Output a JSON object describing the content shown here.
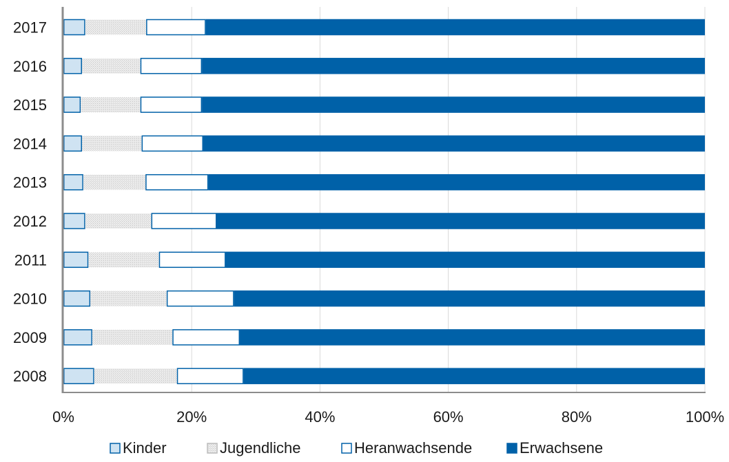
{
  "chart_data": {
    "type": "bar",
    "orientation": "horizontal",
    "stacked": "percent",
    "categories": [
      "2008",
      "2009",
      "2010",
      "2011",
      "2012",
      "2013",
      "2014",
      "2015",
      "2016",
      "2017"
    ],
    "series": [
      {
        "name": "Kinder",
        "color": "#cfe3f2",
        "values": [
          4.8,
          4.5,
          4.2,
          3.9,
          3.4,
          3.1,
          2.9,
          2.7,
          2.9,
          3.4
        ]
      },
      {
        "name": "Jugendliche",
        "color": "#e6e6e6",
        "values": [
          12.9,
          12.5,
          11.9,
          11.0,
          10.3,
          9.7,
          9.3,
          9.3,
          9.1,
          9.5
        ]
      },
      {
        "name": "Heranwachsende",
        "color": "#ffffff",
        "values": [
          10.4,
          10.5,
          10.5,
          10.4,
          10.2,
          9.8,
          9.6,
          9.6,
          9.6,
          9.3
        ]
      },
      {
        "name": "Erwachsene",
        "color": "#0061a8",
        "values": [
          71.9,
          72.5,
          73.4,
          74.7,
          76.1,
          77.4,
          78.2,
          78.4,
          78.4,
          77.8
        ]
      }
    ],
    "xlim": [
      0,
      100
    ],
    "x_ticks": [
      "0%",
      "20%",
      "40%",
      "60%",
      "80%",
      "100%"
    ],
    "title": "",
    "xlabel": "",
    "ylabel": "",
    "grid": "vertical",
    "legend_position": "bottom"
  }
}
